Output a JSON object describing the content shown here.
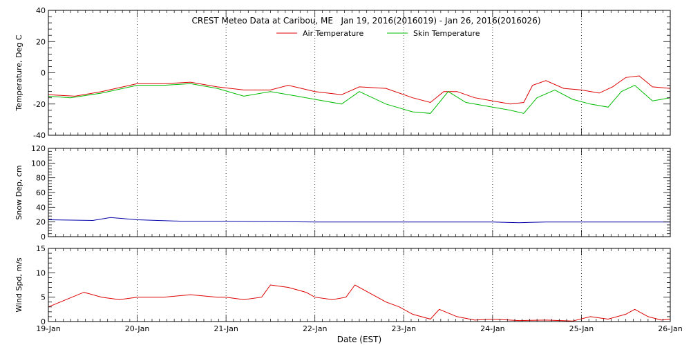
{
  "chart_data": {
    "type": "line",
    "title": "CREST Meteo Data at Caribou, ME   Jan 19, 2016(2016019) - Jan 26, 2016(2016026)",
    "xlabel": "Date (EST)",
    "x_ticks": [
      "19-Jan",
      "20-Jan",
      "21-Jan",
      "22-Jan",
      "23-Jan",
      "24-Jan",
      "25-Jan",
      "26-Jan"
    ],
    "x_range_days": [
      19,
      26
    ],
    "grid": "dotted vertical lines at each day",
    "panels": [
      {
        "ylabel": "Temperature, Deg C",
        "ylim": [
          -40,
          40
        ],
        "yticks": [
          -40,
          -20,
          0,
          20,
          40
        ],
        "legend": "top-center",
        "series": [
          {
            "name": "Air Temperature",
            "color": "#dd0000",
            "x": [
              19.0,
              19.3,
              19.6,
              20.0,
              20.3,
              20.6,
              20.9,
              21.2,
              21.5,
              21.7,
              22.0,
              22.3,
              22.5,
              22.8,
              23.1,
              23.3,
              23.45,
              23.6,
              23.8,
              24.0,
              24.2,
              24.35,
              24.45,
              24.6,
              24.8,
              25.0,
              25.2,
              25.35,
              25.5,
              25.65,
              25.8,
              26.0
            ],
            "y": [
              -14,
              -15,
              -12,
              -7,
              -7,
              -6,
              -9,
              -11,
              -11,
              -8,
              -12,
              -14,
              -9,
              -10,
              -16,
              -19,
              -12,
              -12,
              -16,
              -18,
              -20,
              -19,
              -8,
              -5,
              -10,
              -11,
              -13,
              -9,
              -3,
              -2,
              -9,
              -10
            ]
          },
          {
            "name": "Skin Temperature",
            "color": "#00bb00",
            "x": [
              19.0,
              19.25,
              19.6,
              20.0,
              20.3,
              20.6,
              20.9,
              21.2,
              21.5,
              21.8,
              22.0,
              22.3,
              22.5,
              22.8,
              23.1,
              23.3,
              23.5,
              23.7,
              23.9,
              24.2,
              24.35,
              24.5,
              24.7,
              24.9,
              25.1,
              25.3,
              25.45,
              25.6,
              25.8,
              26.0
            ],
            "y": [
              -15,
              -16,
              -13,
              -8,
              -8,
              -7,
              -10,
              -15,
              -12,
              -15,
              -17,
              -20,
              -12,
              -20,
              -25,
              -26,
              -12,
              -19,
              -21,
              -24,
              -26,
              -16,
              -11,
              -17,
              -20,
              -22,
              -12,
              -8,
              -18,
              -16
            ]
          }
        ]
      },
      {
        "ylabel": "Snow Dep, cm",
        "ylim": [
          0,
          120
        ],
        "yticks": [
          0,
          20,
          40,
          60,
          80,
          100,
          120
        ],
        "series": [
          {
            "color": "#0000aa",
            "x": [
              19.0,
              19.5,
              19.7,
              20.0,
              20.5,
              21.0,
              22.0,
              23.0,
              24.0,
              24.3,
              24.6,
              25.0,
              26.0
            ],
            "y": [
              23,
              22,
              26,
              23,
              21,
              21,
              20,
              20,
              20,
              19,
              20,
              20,
              20
            ]
          }
        ]
      },
      {
        "ylabel": "Wind Spd, m/s",
        "ylim": [
          0,
          15
        ],
        "yticks": [
          0,
          5,
          10,
          15
        ],
        "series": [
          {
            "color": "#dd0000",
            "x": [
              19.0,
              19.2,
              19.4,
              19.6,
              19.8,
              20.0,
              20.3,
              20.6,
              20.9,
              21.0,
              21.2,
              21.4,
              21.5,
              21.7,
              21.9,
              22.0,
              22.2,
              22.35,
              22.45,
              22.6,
              22.8,
              22.95,
              23.1,
              23.3,
              23.4,
              23.6,
              23.8,
              24.0,
              24.3,
              24.6,
              24.9,
              25.1,
              25.3,
              25.5,
              25.6,
              25.75,
              25.9,
              26.0
            ],
            "y": [
              3,
              4.5,
              6,
              5,
              4.5,
              5,
              5,
              5.5,
              5,
              5,
              4.5,
              5,
              7.5,
              7,
              6,
              5,
              4.5,
              5,
              7.5,
              6,
              4,
              3,
              1.5,
              0.5,
              2.5,
              1,
              0.3,
              0.5,
              0.2,
              0.3,
              0.1,
              1,
              0.5,
              1.5,
              2.5,
              1,
              0.3,
              0.5
            ]
          }
        ]
      }
    ]
  }
}
